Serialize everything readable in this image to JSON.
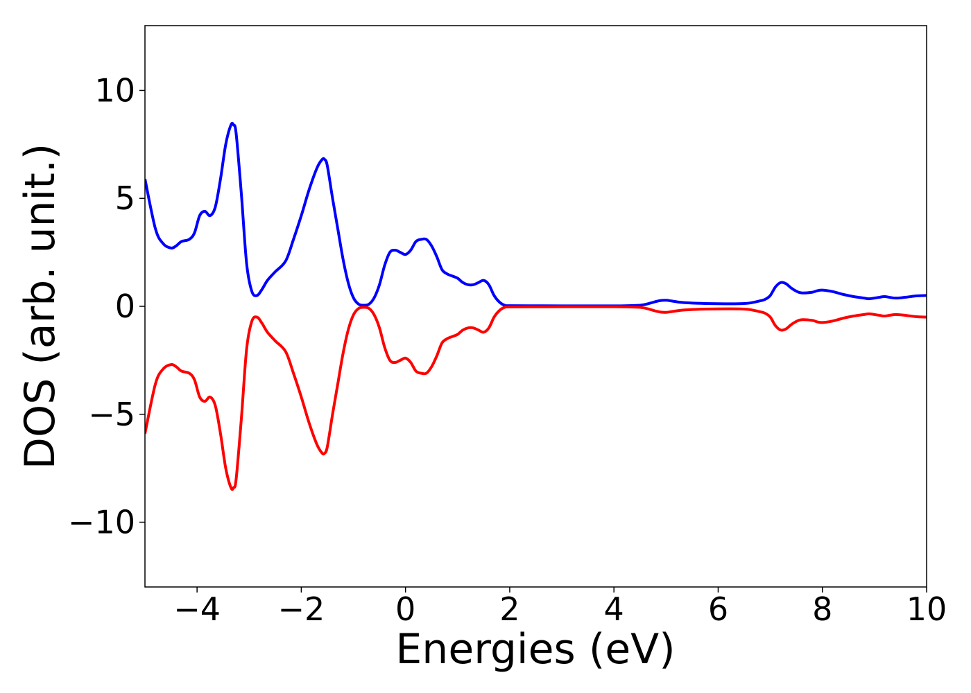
{
  "chart_data": {
    "type": "line",
    "title": "",
    "xlabel": "Energies (eV)",
    "ylabel": "DOS (arb. unit.)",
    "xlim": [
      -5,
      10
    ],
    "ylim": [
      -13,
      13
    ],
    "grid": false,
    "xticks": [
      {
        "value": -4,
        "label": "−4"
      },
      {
        "value": -2,
        "label": "−2"
      },
      {
        "value": 0,
        "label": "0"
      },
      {
        "value": 2,
        "label": "2"
      },
      {
        "value": 4,
        "label": "4"
      },
      {
        "value": 6,
        "label": "6"
      },
      {
        "value": 8,
        "label": "8"
      },
      {
        "value": 10,
        "label": "10"
      }
    ],
    "yticks": [
      {
        "value": -10,
        "label": "−10"
      },
      {
        "value": -5,
        "label": "−5"
      },
      {
        "value": 0,
        "label": "0"
      },
      {
        "value": 5,
        "label": "5"
      },
      {
        "value": 10,
        "label": "10"
      }
    ],
    "x": [
      -5.0,
      -4.8,
      -4.65,
      -4.5,
      -4.4,
      -4.3,
      -4.15,
      -4.05,
      -3.95,
      -3.85,
      -3.75,
      -3.65,
      -3.55,
      -3.45,
      -3.35,
      -3.3,
      -3.25,
      -3.15,
      -3.05,
      -2.95,
      -2.85,
      -2.75,
      -2.65,
      -2.5,
      -2.3,
      -2.15,
      -2.0,
      -1.85,
      -1.7,
      -1.6,
      -1.55,
      -1.5,
      -1.4,
      -1.3,
      -1.2,
      -1.1,
      -1.0,
      -0.9,
      -0.8,
      -0.7,
      -0.6,
      -0.5,
      -0.4,
      -0.3,
      -0.2,
      -0.1,
      0.0,
      0.1,
      0.2,
      0.3,
      0.4,
      0.5,
      0.6,
      0.7,
      0.8,
      0.9,
      1.0,
      1.1,
      1.2,
      1.3,
      1.4,
      1.5,
      1.6,
      1.7,
      1.8,
      1.9,
      2.0,
      3.0,
      4.0,
      4.5,
      4.7,
      4.8,
      4.9,
      5.0,
      5.1,
      5.3,
      5.6,
      6.0,
      6.4,
      6.6,
      6.8,
      6.9,
      7.0,
      7.1,
      7.2,
      7.3,
      7.4,
      7.5,
      7.6,
      7.8,
      7.9,
      8.0,
      8.2,
      8.4,
      8.6,
      8.8,
      8.9,
      9.1,
      9.2,
      9.4,
      9.6,
      9.8,
      10.0
    ],
    "series": [
      {
        "color": "#0000ff",
        "values": [
          5.9,
          3.6,
          2.9,
          2.7,
          2.8,
          3.0,
          3.1,
          3.4,
          4.2,
          4.4,
          4.2,
          4.6,
          5.9,
          7.5,
          8.4,
          8.4,
          8.0,
          5.2,
          2.0,
          0.7,
          0.5,
          0.8,
          1.2,
          1.6,
          2.1,
          3.1,
          4.2,
          5.4,
          6.4,
          6.8,
          6.8,
          6.5,
          5.0,
          3.6,
          2.2,
          1.1,
          0.4,
          0.1,
          0.05,
          0.1,
          0.4,
          1.0,
          1.9,
          2.5,
          2.6,
          2.5,
          2.4,
          2.6,
          3.0,
          3.1,
          3.1,
          2.8,
          2.3,
          1.7,
          1.5,
          1.4,
          1.3,
          1.1,
          1.0,
          1.0,
          1.1,
          1.2,
          1.0,
          0.5,
          0.2,
          0.05,
          0.03,
          0.02,
          0.02,
          0.05,
          0.15,
          0.22,
          0.27,
          0.28,
          0.25,
          0.18,
          0.14,
          0.12,
          0.12,
          0.15,
          0.25,
          0.32,
          0.5,
          0.9,
          1.1,
          1.05,
          0.85,
          0.7,
          0.62,
          0.65,
          0.72,
          0.75,
          0.68,
          0.55,
          0.45,
          0.38,
          0.35,
          0.42,
          0.45,
          0.38,
          0.42,
          0.48,
          0.5
        ]
      },
      {
        "color": "#ff0000",
        "values": [
          -5.9,
          -3.6,
          -2.9,
          -2.7,
          -2.8,
          -3.0,
          -3.1,
          -3.4,
          -4.2,
          -4.4,
          -4.2,
          -4.6,
          -5.9,
          -7.5,
          -8.4,
          -8.4,
          -8.0,
          -5.2,
          -2.0,
          -0.7,
          -0.5,
          -0.8,
          -1.2,
          -1.6,
          -2.1,
          -3.1,
          -4.2,
          -5.4,
          -6.4,
          -6.8,
          -6.8,
          -6.5,
          -5.0,
          -3.6,
          -2.2,
          -1.1,
          -0.4,
          -0.1,
          -0.05,
          -0.1,
          -0.4,
          -1.0,
          -1.9,
          -2.5,
          -2.6,
          -2.5,
          -2.4,
          -2.6,
          -3.0,
          -3.1,
          -3.1,
          -2.8,
          -2.3,
          -1.7,
          -1.5,
          -1.4,
          -1.3,
          -1.1,
          -1.0,
          -1.0,
          -1.1,
          -1.2,
          -1.0,
          -0.5,
          -0.2,
          -0.05,
          -0.03,
          -0.02,
          -0.02,
          -0.05,
          -0.15,
          -0.22,
          -0.27,
          -0.28,
          -0.25,
          -0.18,
          -0.14,
          -0.12,
          -0.12,
          -0.15,
          -0.25,
          -0.32,
          -0.5,
          -0.9,
          -1.1,
          -1.05,
          -0.85,
          -0.7,
          -0.62,
          -0.65,
          -0.72,
          -0.75,
          -0.68,
          -0.55,
          -0.45,
          -0.38,
          -0.35,
          -0.42,
          -0.45,
          -0.38,
          -0.42,
          -0.48,
          -0.5
        ]
      }
    ]
  }
}
